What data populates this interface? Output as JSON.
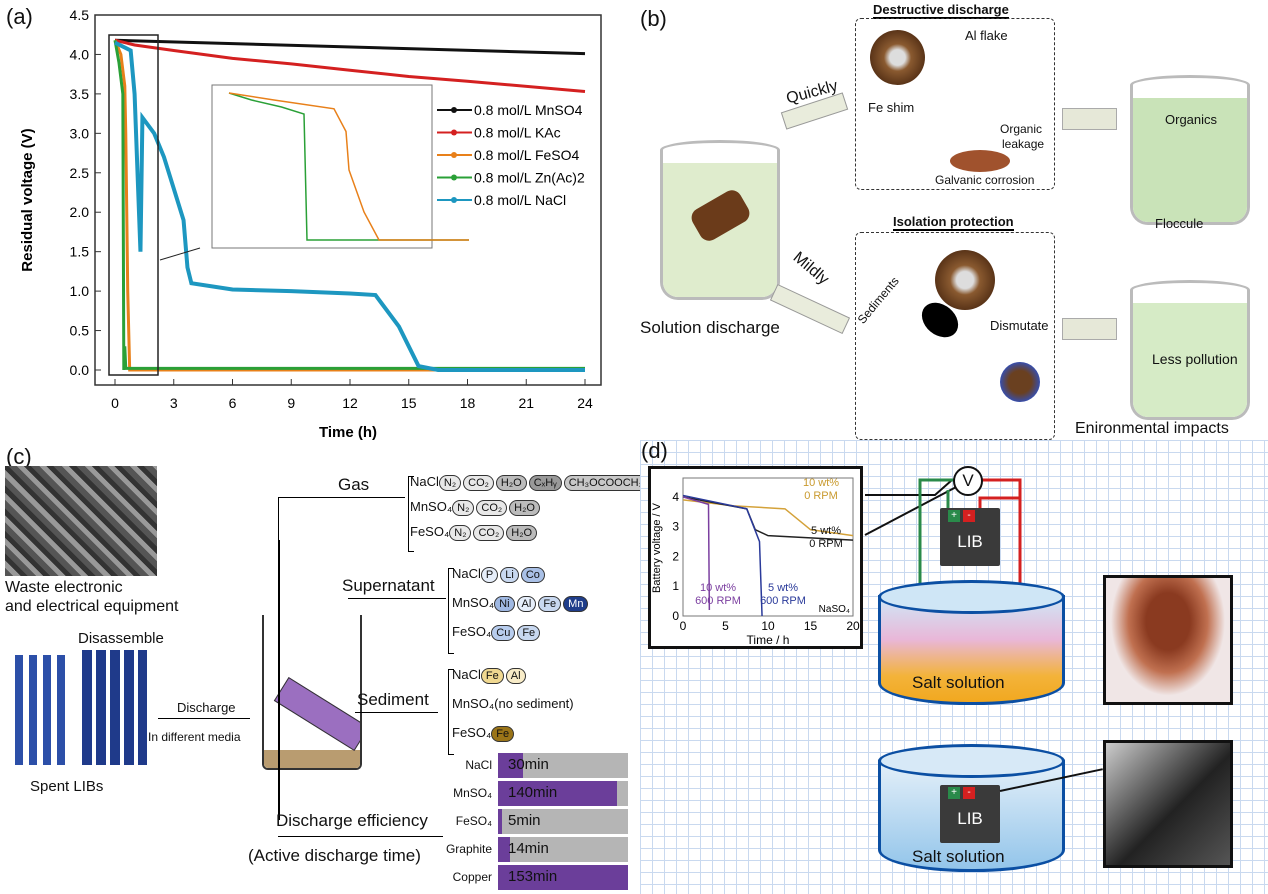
{
  "panels": {
    "a": "(a)",
    "b": "(b)",
    "c": "(c)",
    "d": "(d)"
  },
  "chart_data": [
    {
      "type": "line",
      "xlabel": "Time (h)",
      "ylabel": "Residual voltage (V)",
      "xlim": [
        -1,
        26
      ],
      "ylim": [
        -0.2,
        4.5
      ],
      "xticks": [
        "0",
        "3",
        "6",
        "9",
        "12",
        "15",
        "18",
        "21",
        "24"
      ],
      "yticks": [
        "0.0",
        "0.5",
        "1.0",
        "1.5",
        "2.0",
        "2.5",
        "3.0",
        "3.5",
        "4.0",
        "4.5"
      ],
      "legend": "right (inside)",
      "series": [
        {
          "name": "0.8 mol/L MnSO4",
          "color": "#111111",
          "x": [
            0,
            24
          ],
          "y": [
            4.18,
            4.01
          ]
        },
        {
          "name": "0.8 mol/L KAc",
          "color": "#d42020",
          "x": [
            0,
            1,
            3,
            6,
            9,
            12,
            15,
            18,
            24
          ],
          "y": [
            4.18,
            4.12,
            4.05,
            3.95,
            3.88,
            3.8,
            3.72,
            3.66,
            3.53
          ]
        },
        {
          "name": "0.8 mol/L FeSO4",
          "color": "#e8801a",
          "x": [
            0,
            0.3,
            0.5,
            0.55,
            0.6,
            0.65,
            0.75,
            24
          ],
          "y": [
            4.18,
            4.0,
            3.6,
            3.0,
            2.0,
            1.0,
            0,
            0
          ]
        },
        {
          "name": "0.8 mol/L Zn(Ac)2",
          "color": "#2aa037",
          "x": [
            0,
            0.2,
            0.4,
            0.45,
            0.5,
            0.55,
            24
          ],
          "y": [
            4.18,
            3.9,
            3.5,
            0.0,
            0.3,
            0.02,
            0.02
          ]
        },
        {
          "name": "0.8 mol/L NaCl",
          "color": "#1d97c0",
          "x": [
            0,
            0.8,
            1.0,
            1.3,
            1.4,
            2.0,
            2.5,
            3.0,
            3.5,
            3.7,
            3.9,
            6,
            9,
            12,
            13.3,
            14.5,
            15.5,
            16.5,
            24
          ],
          "y": [
            4.15,
            4.05,
            3.5,
            1.5,
            3.2,
            3.0,
            2.7,
            2.3,
            1.9,
            1.3,
            1.1,
            1.02,
            1.0,
            0.97,
            0.95,
            0.55,
            0.05,
            0,
            0
          ]
        }
      ]
    },
    {
      "type": "line",
      "xlabel": "Time / h",
      "ylabel": "Battery voltage / V",
      "xlim": [
        0,
        20
      ],
      "ylim": [
        0,
        4.4
      ],
      "xticks": [
        "0",
        "5",
        "10",
        "15",
        "20"
      ],
      "yticks": [
        "0",
        "1",
        "2",
        "3",
        "4"
      ],
      "annotation": "NaSO4",
      "series": [
        {
          "name": "10 wt% 0 RPM",
          "color": "#d4a23a",
          "x": [
            0,
            6,
            12,
            15,
            20
          ],
          "y": [
            3.9,
            3.7,
            3.6,
            2.9,
            2.7
          ]
        },
        {
          "name": "5 wt% 0 RPM",
          "color": "#222222",
          "x": [
            0,
            7.5,
            8.5,
            10,
            20
          ],
          "y": [
            4.0,
            3.6,
            2.9,
            2.7,
            2.55
          ]
        },
        {
          "name": "10 wt% 600 RPM",
          "color": "#7b3fa0",
          "x": [
            0,
            3,
            3.1
          ],
          "y": [
            4.0,
            3.75,
            0.2
          ]
        },
        {
          "name": "5 wt% 600 RPM",
          "color": "#2a3a9a",
          "x": [
            0,
            7.5,
            9,
            9.3
          ],
          "y": [
            4.05,
            3.6,
            2.5,
            0
          ]
        }
      ]
    }
  ],
  "b": {
    "destructive": "Destructive discharge",
    "al_flake": "Al flake",
    "fe_shim": "Fe shim",
    "organic_leakage_1": "Organic",
    "organic_leakage_2": "leakage",
    "galvanic": "Galvanic corrosion",
    "quickly": "Quickly",
    "mildly": "Mildly",
    "solution_discharge": "Solution discharge",
    "isolation": "Isolation protection",
    "sediments": "Sediments",
    "dismutate": "Dismutate",
    "organics": "Organics",
    "floccule": "Floccule",
    "less_pollution": "Less pollution",
    "env": "Enironmental impacts"
  },
  "c": {
    "weee_1": "Waste electronic",
    "weee_2": "and electrical equipment",
    "disassemble": "Disassemble",
    "spent": "Spent LIBs",
    "discharge": "Discharge",
    "media": "In different media",
    "gas": "Gas",
    "supernatant": "Supernatant",
    "sediment": "Sediment",
    "eff_1": "Discharge efficiency",
    "eff_2": "(Active discharge time)",
    "gas_rows": [
      {
        "salt": "NaCl",
        "items": [
          "N₂",
          "CO₂",
          "H₂O",
          "CₓHᵧ",
          "CH₃OCOOCH₃"
        ]
      },
      {
        "salt": "MnSO₄",
        "items": [
          "N₂",
          "CO₂",
          "H₂O"
        ]
      },
      {
        "salt": "FeSO₄",
        "items": [
          "N₂",
          "CO₂",
          "H₂O"
        ]
      }
    ],
    "super_rows": [
      {
        "salt": "NaCl",
        "items": [
          "P",
          "Li",
          "Co"
        ]
      },
      {
        "salt": "MnSO₄",
        "items": [
          "Ni",
          "Al",
          "Fe",
          "Mn"
        ]
      },
      {
        "salt": "FeSO₄",
        "items": [
          "Cu",
          "Fe"
        ]
      }
    ],
    "sed_rows": [
      {
        "salt": "NaCl",
        "items": [
          "Fe",
          "Al"
        ]
      },
      {
        "salt": "MnSO₄(no sediment)",
        "items": []
      },
      {
        "salt": "FeSO₄",
        "items": [
          "Fe"
        ]
      }
    ],
    "eff": [
      {
        "label": "NaCl",
        "text": "30min",
        "minutes": 30
      },
      {
        "label": "MnSO₄",
        "text": "140min",
        "minutes": 140
      },
      {
        "label": "FeSO₄",
        "text": "5min",
        "minutes": 5
      },
      {
        "label": "Graphite",
        "text": "14min",
        "minutes": 14
      },
      {
        "label": "Copper",
        "text": "153min",
        "minutes": 153
      }
    ]
  },
  "d": {
    "volt": "V",
    "lib": "LIB",
    "plus": "+",
    "minus": "-",
    "salt": "Salt solution",
    "l1": "10 wt%",
    "l1b": "0 RPM",
    "l2": "5 wt%",
    "l2b": "0 RPM",
    "l3": "10 wt%",
    "l3b": "600 RPM",
    "l4": "5 wt%",
    "l4b": "600 RPM",
    "ann": "NaSO₄"
  }
}
